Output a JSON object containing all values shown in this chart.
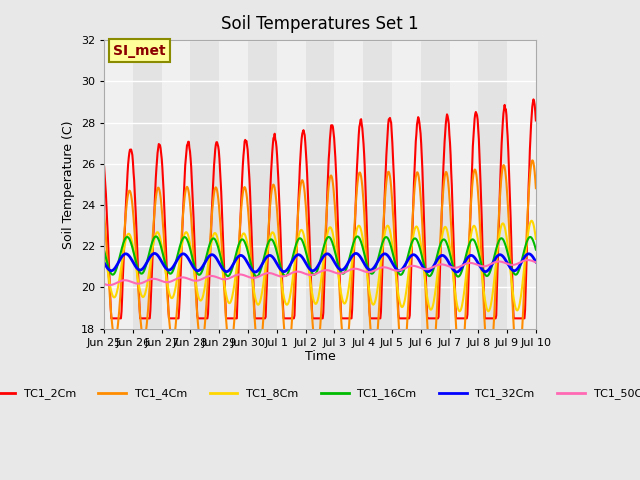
{
  "title": "Soil Temperatures Set 1",
  "ylabel": "Soil Temperature (C)",
  "xlabel": "Time",
  "ylim": [
    18,
    32
  ],
  "yticks": [
    18,
    20,
    22,
    24,
    26,
    28,
    30,
    32
  ],
  "annotation_text": "SI_met",
  "annotation_color": "#8B0000",
  "annotation_bg": "#FFFF99",
  "annotation_border": "#8B8B00",
  "bg_color": "#E8E8E8",
  "plot_bg_color": "#F0F0F0",
  "line_colors": {
    "TC1_2Cm": "#FF0000",
    "TC1_4Cm": "#FF8C00",
    "TC1_8Cm": "#FFD700",
    "TC1_16Cm": "#00BB00",
    "TC1_32Cm": "#0000FF",
    "TC1_50Cm": "#FF69B4"
  },
  "line_widths": {
    "TC1_2Cm": 1.5,
    "TC1_4Cm": 1.5,
    "TC1_8Cm": 1.5,
    "TC1_16Cm": 1.5,
    "TC1_32Cm": 2.0,
    "TC1_50Cm": 1.5
  },
  "xtick_labels": [
    "Jun 25",
    "Jun 26",
    "Jun 27",
    "Jun 28",
    "Jun 29",
    "Jun 30",
    "Jul 1",
    "Jul 2",
    "Jul 3",
    "Jul 4",
    "Jul 5",
    "Jul 6",
    "Jul 7",
    "Jul 8",
    "Jul 9",
    "Jul 10"
  ],
  "grid_color": "#FFFFFF",
  "num_days": 15,
  "base_temp": 21.0,
  "daily_amplitude_2cm": 5.5,
  "daily_amplitude_4cm": 3.5,
  "daily_amplitude_8cm": 1.5,
  "daily_amplitude_16cm": 0.9,
  "daily_amplitude_32cm": 0.4,
  "daily_amplitude_50cm": 0.1,
  "trend_50cm": 0.07
}
